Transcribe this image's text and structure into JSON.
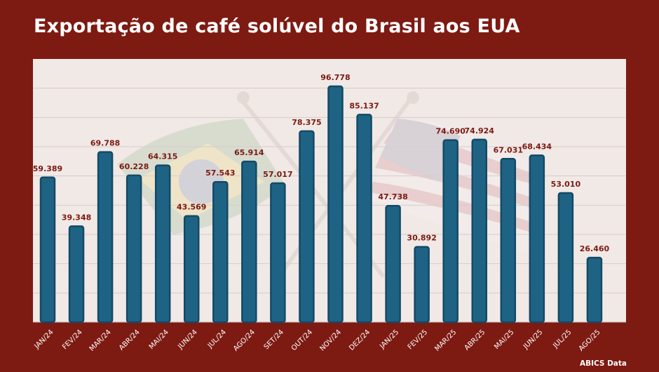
{
  "title": "Exportação de café solúvel do Brasil aos EUA",
  "source": "ABICS Data",
  "colors": {
    "background": "#7d1a12",
    "plot_background": "#f1e9e6",
    "bar_fill": "#1f6384",
    "bar_edge": "#134a66",
    "value_label": "#7d1a12",
    "tick_label": "#ffffff",
    "grid": "#d6cdcb"
  },
  "chart_data": {
    "type": "bar",
    "categories": [
      "JAN/24",
      "FEV/24",
      "MAR/24",
      "ABR/24",
      "MAI/24",
      "JUN/24",
      "JUL/24",
      "AGO/24",
      "SET/24",
      "OUT/24",
      "NOV/24",
      "DEZ/24",
      "JAN/25",
      "FEV/25",
      "MAR/25",
      "ABR/25",
      "MAI/25",
      "JUN/25",
      "JUL/25",
      "AGO/25"
    ],
    "values": [
      59.389,
      39.348,
      69.788,
      60.228,
      64.315,
      43.569,
      57.543,
      65.914,
      57.017,
      78.375,
      96.778,
      85.137,
      47.738,
      30.892,
      74.69,
      74.924,
      67.031,
      68.434,
      53.01,
      26.46
    ],
    "labels": [
      "59.389",
      "39.348",
      "69.788",
      "60.228",
      "64.315",
      "43.569",
      "57.543",
      "65.914",
      "57.017",
      "78.375",
      "96.778",
      "85.137",
      "47.738",
      "30.892",
      "74.690",
      "74.924",
      "67.031",
      "68.434",
      "53.010",
      "26.460"
    ],
    "ylim": [
      0,
      108
    ],
    "grid": true,
    "legend": "none"
  }
}
